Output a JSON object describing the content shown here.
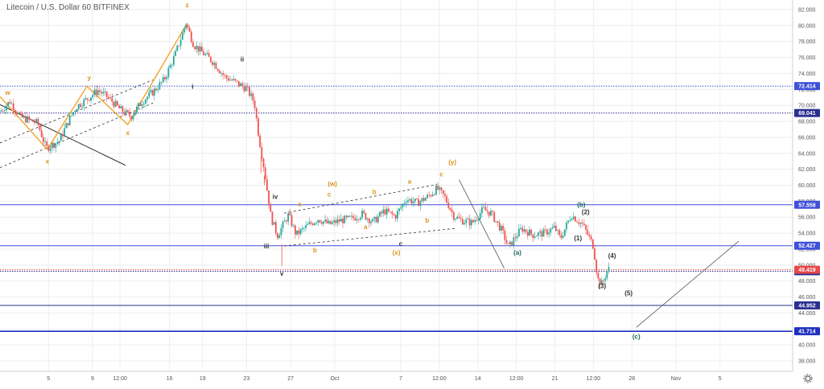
{
  "chart_data": {
    "type": "candlestick",
    "title": "Litecoin / U.S. Dollar  60  BITFINEX",
    "x_ticks": [
      {
        "label": "5",
        "day": 5
      },
      {
        "label": "9",
        "day": 9
      },
      {
        "label": "12:00",
        "day": 11.5
      },
      {
        "label": "16",
        "day": 16
      },
      {
        "label": "19",
        "day": 19
      },
      {
        "label": "23",
        "day": 23
      },
      {
        "label": "27",
        "day": 27
      },
      {
        "label": "Oct",
        "day": 31
      },
      {
        "label": "7",
        "day": 37
      },
      {
        "label": "12:00",
        "day": 40.5
      },
      {
        "label": "14",
        "day": 44
      },
      {
        "label": "12:00",
        "day": 47.5
      },
      {
        "label": "21",
        "day": 51
      },
      {
        "label": "12:00",
        "day": 54.5
      },
      {
        "label": "28",
        "day": 58
      },
      {
        "label": "Nov",
        "day": 62
      },
      {
        "label": "5",
        "day": 66
      }
    ],
    "y_ticks": [
      "82.000",
      "80.000",
      "78.000",
      "76.000",
      "74.000",
      "72.000",
      "70.000",
      "68.000",
      "66.000",
      "64.000",
      "62.000",
      "60.000",
      "58.000",
      "56.000",
      "54.000",
      "52.000",
      "50.000",
      "48.000",
      "46.000",
      "44.000",
      "42.000",
      "40.000",
      "38.000"
    ],
    "ylim": [
      36.7,
      83.2
    ],
    "xlim": [
      0.6,
      72.6
    ],
    "price_path": [
      [
        0.6,
        69.2
      ],
      [
        1.5,
        70.5
      ],
      [
        2.5,
        68.5
      ],
      [
        4,
        67.8
      ],
      [
        4.8,
        64.6
      ],
      [
        6,
        65.6
      ],
      [
        6.8,
        68
      ],
      [
        7.5,
        69.8
      ],
      [
        8.5,
        70.8
      ],
      [
        9.5,
        71.9
      ],
      [
        10.5,
        70.9
      ],
      [
        11.5,
        69.5
      ],
      [
        12.5,
        68.6
      ],
      [
        13.5,
        70.5
      ],
      [
        14.5,
        71.7
      ],
      [
        15.5,
        73.2
      ],
      [
        16.5,
        76.3
      ],
      [
        17.5,
        80.3
      ],
      [
        18.2,
        77.6
      ],
      [
        19,
        76.6
      ],
      [
        20,
        75.4
      ],
      [
        21,
        73.6
      ],
      [
        22,
        72.9
      ],
      [
        23,
        72.1
      ],
      [
        23.7,
        70.4
      ],
      [
        24.1,
        66.2
      ],
      [
        24.6,
        62
      ],
      [
        25.2,
        56.1
      ],
      [
        25.8,
        53.7
      ],
      [
        26.3,
        55
      ],
      [
        26.8,
        56.3
      ],
      [
        27.5,
        53.8
      ],
      [
        28.5,
        54.9
      ],
      [
        29.5,
        55.8
      ],
      [
        30.5,
        55.1
      ],
      [
        31.5,
        55.6
      ],
      [
        32.5,
        55.8
      ],
      [
        33.5,
        56.4
      ],
      [
        34.5,
        55.4
      ],
      [
        35.5,
        56.8
      ],
      [
        36.5,
        56.1
      ],
      [
        37.5,
        58.3
      ],
      [
        38.5,
        57.8
      ],
      [
        39.5,
        58.6
      ],
      [
        40.3,
        59.6
      ],
      [
        41,
        58.5
      ],
      [
        41.8,
        56.2
      ],
      [
        42.5,
        55.6
      ],
      [
        43.5,
        55.3
      ],
      [
        44.5,
        57
      ],
      [
        45.2,
        56.5
      ],
      [
        46.2,
        54.3
      ],
      [
        46.8,
        52.2
      ],
      [
        47.4,
        53.5
      ],
      [
        48,
        54.6
      ],
      [
        49,
        53.8
      ],
      [
        50,
        54
      ],
      [
        51,
        54.7
      ],
      [
        51.5,
        53.3
      ],
      [
        52.5,
        56.3
      ],
      [
        53.5,
        55.1
      ],
      [
        54,
        53.8
      ],
      [
        54.5,
        52.4
      ],
      [
        54.9,
        48.2
      ],
      [
        55.3,
        47.6
      ],
      [
        55.8,
        49.5
      ]
    ],
    "annotations": {
      "orange": [
        {
          "text": "w",
          "day": 1.3,
          "price": 71.3
        },
        {
          "text": "x",
          "day": 4.9,
          "price": 62.7
        },
        {
          "text": "y",
          "day": 8.7,
          "price": 73.2
        },
        {
          "text": "x",
          "day": 12.2,
          "price": 66.3
        },
        {
          "text": "z",
          "day": 17.6,
          "price": 82.3
        },
        {
          "text": "a",
          "day": 27.8,
          "price": 57.4
        },
        {
          "text": "c",
          "day": 30.5,
          "price": 58.6
        },
        {
          "text": "(w)",
          "day": 30.8,
          "price": 59.9
        },
        {
          "text": "b",
          "day": 29.2,
          "price": 51.6
        },
        {
          "text": "a",
          "day": 33.8,
          "price": 54.5
        },
        {
          "text": "(x)",
          "day": 36.6,
          "price": 51.3
        },
        {
          "text": "a",
          "day": 37.8,
          "price": 60.2
        },
        {
          "text": "b",
          "day": 39.4,
          "price": 55.3
        },
        {
          "text": "c",
          "day": 40.7,
          "price": 61.1
        },
        {
          "text": "(y)",
          "day": 41.7,
          "price": 62.6
        },
        {
          "text": "b",
          "day": 34.6,
          "price": 58.9
        }
      ],
      "dark": [
        {
          "text": "ii",
          "day": 22.6,
          "price": 75.5
        },
        {
          "text": "i",
          "day": 18.1,
          "price": 72.1
        },
        {
          "text": "iv",
          "day": 25.6,
          "price": 58.3
        },
        {
          "text": "iii",
          "day": 24.8,
          "price": 52.1
        },
        {
          "text": "v",
          "day": 26.2,
          "price": 48.7
        },
        {
          "text": "c",
          "day": 37,
          "price": 52.4
        },
        {
          "text": "(1)",
          "day": 53.1,
          "price": 53.1
        },
        {
          "text": "(2)",
          "day": 53.8,
          "price": 56.4
        },
        {
          "text": "(4)",
          "day": 56.2,
          "price": 50.9
        },
        {
          "text": "(3)",
          "day": 55.3,
          "price": 47.1
        },
        {
          "text": "(5)",
          "day": 57.7,
          "price": 46.2
        }
      ],
      "teal": [
        {
          "text": "(a)",
          "day": 47.6,
          "price": 51.3
        },
        {
          "text": "(b)",
          "day": 53.4,
          "price": 57.3
        },
        {
          "text": "(c)",
          "day": 58.4,
          "price": 40.8
        }
      ]
    },
    "horizontal_levels": [
      {
        "label": "72.414",
        "price": 72.414,
        "color": "#3f51d8",
        "style": "dotted"
      },
      {
        "label": "69.041",
        "price": 69.041,
        "color": "#2a2f8f",
        "style": "dotted"
      },
      {
        "label": "57.558",
        "price": 57.558,
        "color": "#3f51d8",
        "style": "solid"
      },
      {
        "label": "52.427",
        "price": 52.427,
        "color": "#3f51d8",
        "style": "solid"
      },
      {
        "label": "49.236",
        "price": 49.236,
        "color": "#2a2f8f",
        "style": "dotted"
      },
      {
        "label": "44.952",
        "price": 44.952,
        "color": "#2a2f8f",
        "style": "solid"
      },
      {
        "label": "41.714",
        "price": 41.714,
        "color": "#1f2fbf",
        "style": "solid"
      }
    ],
    "current_price": {
      "label": "49.419",
      "price": 49.419,
      "color": "#e8474b"
    },
    "colors": {
      "up": "#26a69a",
      "down": "#ef5350",
      "wave_orange": "#f0a32a",
      "wave_dark": "#333333",
      "wave_teal": "#1e6b5c"
    }
  }
}
